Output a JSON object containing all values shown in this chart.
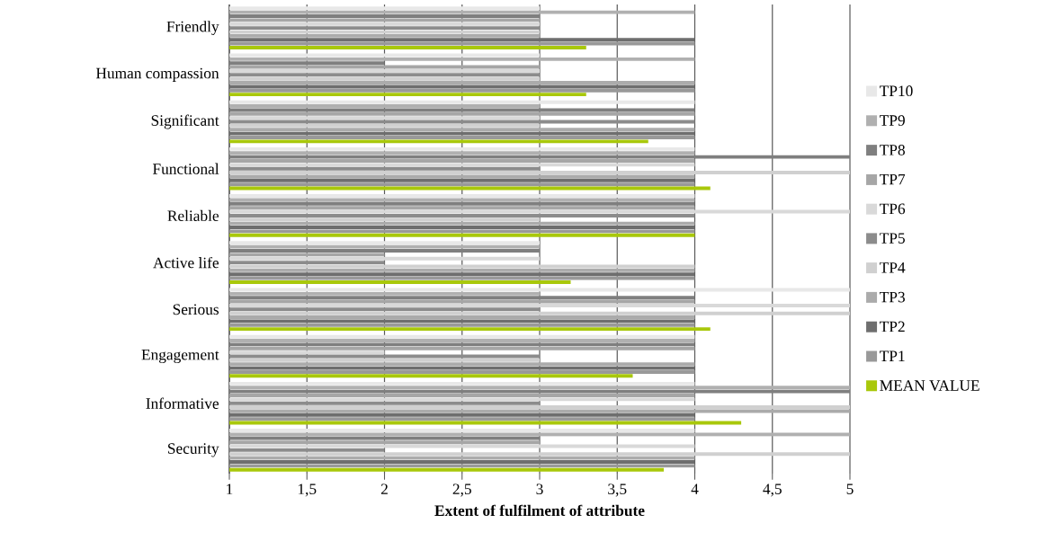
{
  "chart_data": {
    "type": "bar",
    "orientation": "horizontal",
    "categories": [
      "Friendly",
      "Human compassion",
      "Significant",
      "Functional",
      "Reliable",
      "Active life",
      "Serious",
      "Engagement",
      "Informative",
      "Security"
    ],
    "series": [
      {
        "name": "TP10",
        "color": "#e8e8e8",
        "values": [
          3,
          3,
          4,
          4,
          4,
          3,
          5,
          4,
          4,
          4
        ]
      },
      {
        "name": "TP9",
        "color": "#b0b0b0",
        "values": [
          4,
          4,
          3,
          4,
          4,
          3,
          3,
          4,
          5,
          5
        ]
      },
      {
        "name": "TP8",
        "color": "#7f7f7f",
        "values": [
          3,
          2,
          4,
          5,
          4,
          3,
          4,
          4,
          5,
          3
        ]
      },
      {
        "name": "TP7",
        "color": "#a6a6a6",
        "values": [
          3,
          3,
          4,
          4,
          4,
          2,
          4,
          4,
          4,
          3
        ]
      },
      {
        "name": "TP6",
        "color": "#d9d9d9",
        "values": [
          3,
          3,
          3,
          4,
          5,
          3,
          5,
          2,
          4,
          4
        ]
      },
      {
        "name": "TP5",
        "color": "#8c8c8c",
        "values": [
          3,
          3,
          4,
          3,
          4,
          2,
          3,
          3,
          3,
          2
        ]
      },
      {
        "name": "TP4",
        "color": "#d0d0d0",
        "values": [
          3,
          3,
          3,
          5,
          3,
          4,
          5,
          3,
          5,
          5
        ]
      },
      {
        "name": "TP3",
        "color": "#ababab",
        "values": [
          3,
          4,
          4,
          4,
          4,
          4,
          4,
          4,
          5,
          4
        ]
      },
      {
        "name": "TP2",
        "color": "#6e6e6e",
        "values": [
          4,
          4,
          4,
          4,
          4,
          4,
          4,
          4,
          4,
          4
        ]
      },
      {
        "name": "TP1",
        "color": "#999999",
        "values": [
          4,
          4,
          4,
          4,
          4,
          4,
          4,
          4,
          4,
          4
        ]
      },
      {
        "name": "MEAN VALUE",
        "color": "#a9c80b",
        "values": [
          3.3,
          3.3,
          3.7,
          4.1,
          4.0,
          3.2,
          4.1,
          3.6,
          4.3,
          3.8
        ]
      }
    ],
    "xlim": [
      1,
      5
    ],
    "xticks": [
      1,
      {
        "value": 1.5,
        "label": "1,5"
      },
      2,
      {
        "value": 2.5,
        "label": "2,5"
      },
      3,
      {
        "value": 3.5,
        "label": "3,5"
      },
      4,
      {
        "value": 4.5,
        "label": "4,5"
      },
      5
    ],
    "xlabel": "Extent of fulfilment of attribute",
    "grid": "x",
    "legend": "right"
  }
}
